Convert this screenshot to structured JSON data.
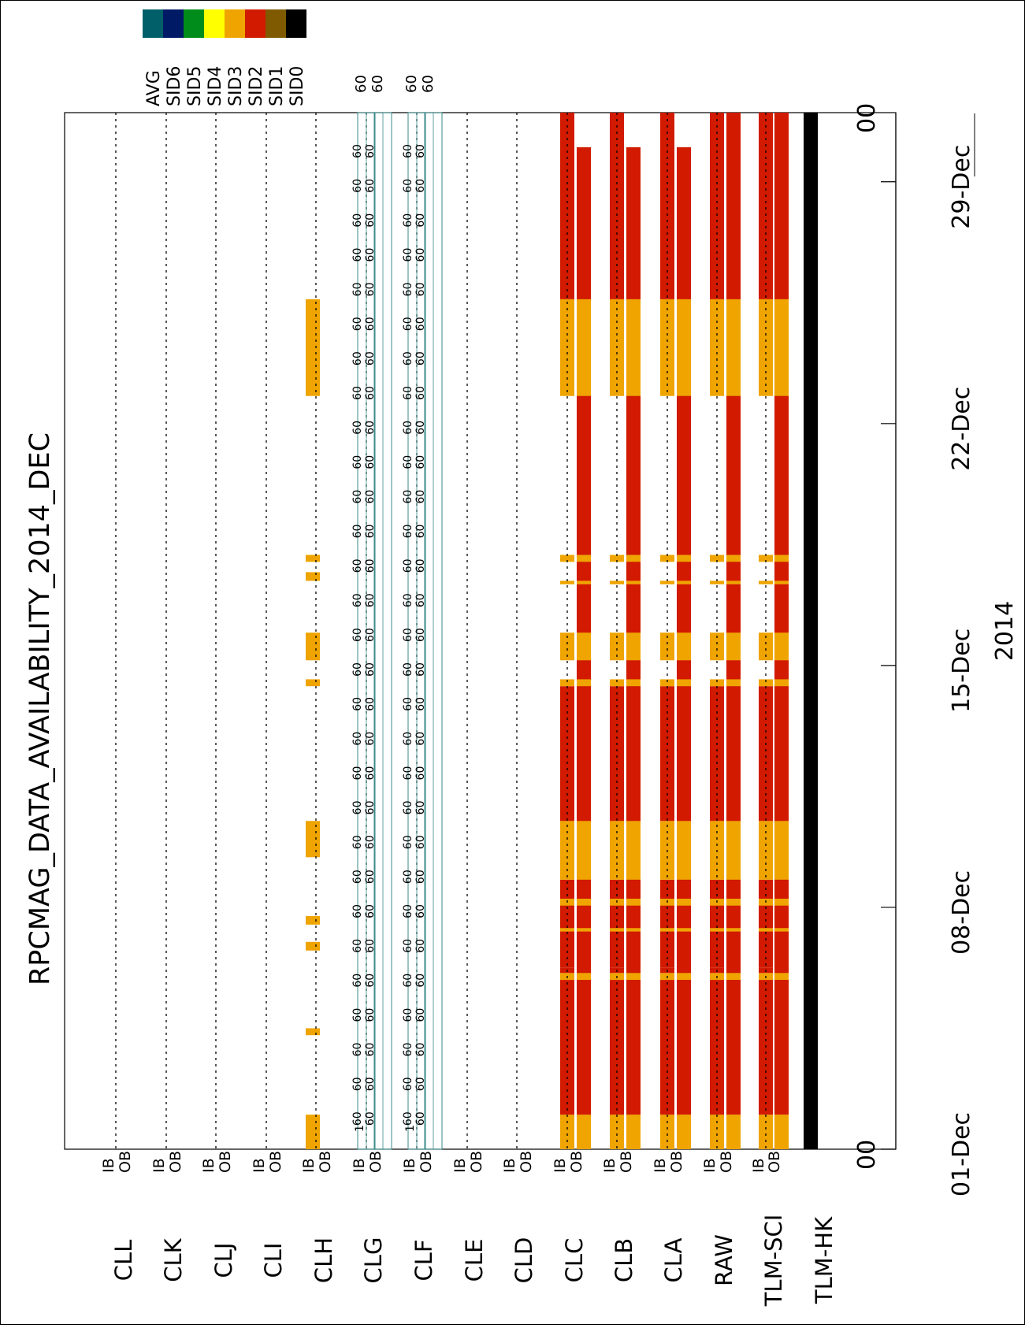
{
  "title": "RPCMAG_DATA_AVAILABILITY_2014_DEC",
  "year_label": "2014",
  "colors": {
    "SID0": "#000000",
    "SID1": "#7f5a00",
    "SID2": "#d11a00",
    "SID3": "#efa400",
    "SID4": "#ffff00",
    "SID5": "#008c1a",
    "SID6": "#001a66",
    "AVG": "#005f68",
    "marker_line": "#3a8a8a"
  },
  "legend": {
    "order": [
      "SID0",
      "SID1",
      "SID2",
      "SID3",
      "SID4",
      "SID5",
      "SID6",
      "AVG"
    ],
    "labels": [
      "SID0",
      "SID1",
      "SID2",
      "SID3",
      "SID4",
      "SID5",
      "SID6",
      "AVG"
    ]
  },
  "row_labels": [
    "TLM-HK",
    "TLM-SCI",
    "RAW",
    "CLA",
    "CLB",
    "CLC",
    "CLD",
    "CLE",
    "CLF",
    "CLG",
    "CLH",
    "CLI",
    "CLJ",
    "CLK",
    "CLL"
  ],
  "sub_labels": {
    "ib": "IB",
    "ob": "OB"
  },
  "marker_text": {
    "one": "1",
    "sixty": "60"
  },
  "time_axis": {
    "labels": [
      "01-Dec",
      "08-Dec",
      "15-Dec",
      "22-Dec",
      "29-Dec"
    ],
    "label_days": [
      0,
      7,
      14,
      21,
      28
    ],
    "end_labels": [
      "00",
      "00"
    ],
    "range_days": [
      0,
      30
    ]
  },
  "chart_data": {
    "type": "bar",
    "title": "RPCMAG_DATA_AVAILABILITY_2014_DEC",
    "xlabel": "2014",
    "x_unit": "day of December 2014 (0 = 01-Dec 00:00)",
    "xlim": [
      0,
      30
    ],
    "tracks": [
      {
        "row": "TLM-HK",
        "segments": [
          {
            "sid": "SID0",
            "start": 0,
            "end": 30
          }
        ]
      },
      {
        "row": "TLM-SCI",
        "sub": "IB",
        "segments": [
          {
            "sid": "SID3",
            "start": 0,
            "end": 1
          },
          {
            "sid": "SID2",
            "start": 1,
            "end": 4.9
          },
          {
            "sid": "SID3",
            "start": 4.9,
            "end": 5.1
          },
          {
            "sid": "SID2",
            "start": 5.1,
            "end": 5.25
          },
          {
            "sid": "SID2",
            "start": 5.25,
            "end": 7.8
          },
          {
            "sid": "SID3",
            "start": 6.3,
            "end": 6.4
          },
          {
            "sid": "SID3",
            "start": 7.05,
            "end": 7.25
          },
          {
            "sid": "SID3",
            "start": 7.8,
            "end": 9.5
          },
          {
            "sid": "SID2",
            "start": 9.5,
            "end": 13.4
          },
          {
            "sid": "SID3",
            "start": 13.4,
            "end": 13.6
          },
          {
            "sid": "SID3",
            "start": 14.15,
            "end": 14.95
          },
          {
            "sid": "SID3",
            "start": 16.35,
            "end": 16.45
          },
          {
            "sid": "SID3",
            "start": 17.0,
            "end": 17.2
          },
          {
            "sid": "SID3",
            "start": 21.8,
            "end": 24.6
          },
          {
            "sid": "SID2",
            "start": 24.6,
            "end": 30
          }
        ]
      },
      {
        "row": "TLM-SCI",
        "sub": "OB",
        "segments": [
          {
            "sid": "SID3",
            "start": 0,
            "end": 1
          },
          {
            "sid": "SID2",
            "start": 1,
            "end": 30
          },
          {
            "sid": "SID3",
            "start": 4.9,
            "end": 5.1
          },
          {
            "sid": "SID3",
            "start": 6.3,
            "end": 6.4
          },
          {
            "sid": "SID3",
            "start": 7.05,
            "end": 7.25
          },
          {
            "sid": "SID3",
            "start": 7.8,
            "end": 9.5
          },
          {
            "sid": "SID3",
            "start": 13.4,
            "end": 13.6
          },
          {
            "sid": "SID3",
            "start": 14.15,
            "end": 14.95
          },
          {
            "sid": "SID3",
            "start": 16.35,
            "end": 16.45
          },
          {
            "sid": "SID3",
            "start": 17.0,
            "end": 17.2
          },
          {
            "sid": "SID3",
            "start": 21.8,
            "end": 24.6
          }
        ]
      },
      {
        "row": "CLA/CLB/CLC",
        "note": "IB and OB identical to RAW except OB ends at 29.0"
      },
      {
        "row": "CLH",
        "sub": "OB",
        "segments": [
          {
            "sid": "SID3",
            "start": 0,
            "end": 1
          },
          {
            "sid": "SID3",
            "start": 3.3,
            "end": 3.5
          },
          {
            "sid": "SID3",
            "start": 5.75,
            "end": 6.0
          },
          {
            "sid": "SID3",
            "start": 6.5,
            "end": 6.75
          },
          {
            "sid": "SID3",
            "start": 8.45,
            "end": 9.5
          },
          {
            "sid": "SID3",
            "start": 13.4,
            "end": 13.6
          },
          {
            "sid": "SID3",
            "start": 14.15,
            "end": 14.95
          },
          {
            "sid": "SID3",
            "start": 16.45,
            "end": 16.7
          },
          {
            "sid": "SID3",
            "start": 17.0,
            "end": 17.2
          },
          {
            "sid": "SID3",
            "start": 21.8,
            "end": 24.6
          }
        ]
      },
      {
        "row": "CLF",
        "note": "AVG marker 60 s at every interval, IB and OB"
      },
      {
        "row": "CLG",
        "note": "AVG marker 60 s at every interval, IB and OB"
      }
    ],
    "marker_values": [
      1,
      60
    ]
  }
}
